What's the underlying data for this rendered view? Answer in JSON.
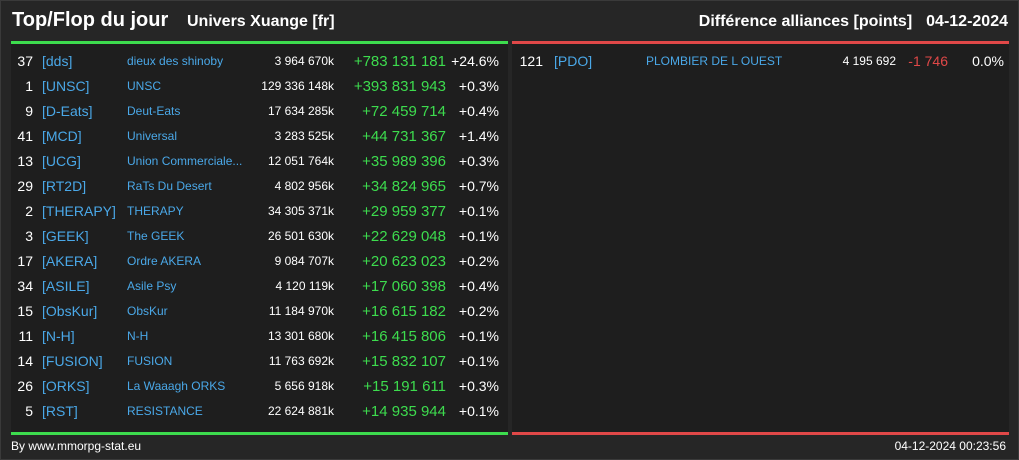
{
  "header": {
    "title": "Top/Flop du jour",
    "universe": "Univers Xuange [fr]",
    "category": "Différence alliances [points]",
    "date": "04-12-2024"
  },
  "colors": {
    "positive": "#3ddc4e",
    "negative": "#e04848",
    "link": "#4aa8e8"
  },
  "top": [
    {
      "rank": "37",
      "tag": "[dds]",
      "name": "dieux des shinoby",
      "points": "3 964 670k",
      "diff": "+783 131 181",
      "pct": "+24.6%"
    },
    {
      "rank": "1",
      "tag": "[UNSC]",
      "name": "UNSC",
      "points": "129 336 148k",
      "diff": "+393 831 943",
      "pct": "+0.3%"
    },
    {
      "rank": "9",
      "tag": "[D-Eats]",
      "name": "Deut-Eats",
      "points": "17 634 285k",
      "diff": "+72 459 714",
      "pct": "+0.4%"
    },
    {
      "rank": "41",
      "tag": "[MCD]",
      "name": "Universal",
      "points": "3 283 525k",
      "diff": "+44 731 367",
      "pct": "+1.4%"
    },
    {
      "rank": "13",
      "tag": "[UCG]",
      "name": "Union Commerciale...",
      "points": "12 051 764k",
      "diff": "+35 989 396",
      "pct": "+0.3%"
    },
    {
      "rank": "29",
      "tag": "[RT2D]",
      "name": "RaTs Du Desert",
      "points": "4 802 956k",
      "diff": "+34 824 965",
      "pct": "+0.7%"
    },
    {
      "rank": "2",
      "tag": "[THERAPY]",
      "name": "THERAPY",
      "points": "34 305 371k",
      "diff": "+29 959 377",
      "pct": "+0.1%"
    },
    {
      "rank": "3",
      "tag": "[GEEK]",
      "name": "The GEEK",
      "points": "26 501 630k",
      "diff": "+22 629 048",
      "pct": "+0.1%"
    },
    {
      "rank": "17",
      "tag": "[AKERA]",
      "name": "Ordre AKERA",
      "points": "9 084 707k",
      "diff": "+20 623 023",
      "pct": "+0.2%"
    },
    {
      "rank": "34",
      "tag": "[ASILE]",
      "name": "Asile Psy",
      "points": "4 120 119k",
      "diff": "+17 060 398",
      "pct": "+0.4%"
    },
    {
      "rank": "15",
      "tag": "[ObsKur]",
      "name": "ObsKur",
      "points": "11 184 970k",
      "diff": "+16 615 182",
      "pct": "+0.2%"
    },
    {
      "rank": "11",
      "tag": "[N-H]",
      "name": "N-H",
      "points": "13 301 680k",
      "diff": "+16 415 806",
      "pct": "+0.1%"
    },
    {
      "rank": "14",
      "tag": "[FUSION]",
      "name": "FUSION",
      "points": "11 763 692k",
      "diff": "+15 832 107",
      "pct": "+0.1%"
    },
    {
      "rank": "26",
      "tag": "[ORKS]",
      "name": "La Waaagh ORKS",
      "points": "5 656 918k",
      "diff": "+15 191 611",
      "pct": "+0.3%"
    },
    {
      "rank": "5",
      "tag": "[RST]",
      "name": "RESISTANCE",
      "points": "22 624 881k",
      "diff": "+14 935 944",
      "pct": "+0.1%"
    }
  ],
  "flop": [
    {
      "rank": "121",
      "tag": "[PDO]",
      "name": "PLOMBIER DE L OUEST",
      "points": "4 195 692",
      "diff": "-1 746",
      "pct": "0.0%"
    }
  ],
  "footer": {
    "source": "By www.mmorpg-stat.eu",
    "timestamp": "04-12-2024 00:23:56"
  }
}
